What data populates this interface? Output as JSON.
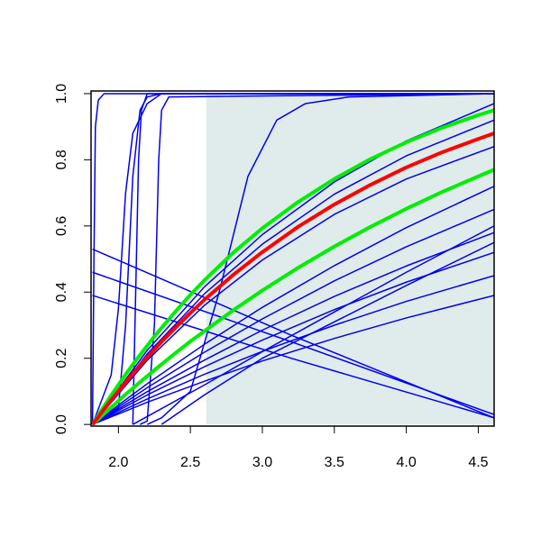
{
  "chart_data": {
    "type": "line",
    "xlim": [
      1.81,
      4.61
    ],
    "ylim": [
      -0.005,
      1.008
    ],
    "xticks": [
      {
        "value": 2,
        "label": "2.0"
      },
      {
        "value": 2.5,
        "label": "2.5"
      },
      {
        "value": 3,
        "label": "3.0"
      },
      {
        "value": 3.5,
        "label": "3.5"
      },
      {
        "value": 4,
        "label": "4.0"
      },
      {
        "value": 4.5,
        "label": "4.5"
      }
    ],
    "yticks": [
      {
        "value": 0,
        "label": "0.0"
      },
      {
        "value": 0.2,
        "label": "0.2"
      },
      {
        "value": 0.4,
        "label": "0.4"
      },
      {
        "value": 0.6,
        "label": "0.6"
      },
      {
        "value": 0.8,
        "label": "0.8"
      },
      {
        "value": 1,
        "label": "1.0"
      }
    ],
    "shaded_region": {
      "x": [
        2.61,
        4.61
      ],
      "y": [
        0,
        1
      ],
      "color": "#e0ebeb"
    },
    "series": [
      {
        "color": "#0000ee",
        "width": 1.5,
        "x": [
          1.82,
          1.83,
          1.84,
          1.86,
          1.9,
          2.0,
          4.61
        ],
        "values": [
          0,
          0.5,
          0.9,
          0.98,
          1.0,
          1.0,
          1.0
        ]
      },
      {
        "color": "#0000ee",
        "width": 1.5,
        "x": [
          1.82,
          1.95,
          2.0,
          2.05,
          2.1,
          2.2,
          2.3,
          4.61
        ],
        "values": [
          0,
          0.15,
          0.35,
          0.7,
          0.88,
          0.97,
          1.0,
          1.0
        ]
      },
      {
        "color": "#0000ee",
        "width": 1.5,
        "x": [
          1.82,
          2.0,
          2.05,
          2.1,
          2.15,
          2.2,
          2.3,
          4.61
        ],
        "values": [
          0,
          0.05,
          0.3,
          0.75,
          0.95,
          0.99,
          1,
          1
        ]
      },
      {
        "color": "#0000ee",
        "width": 1.5,
        "x": [
          2.1,
          2.12,
          2.14,
          2.16,
          2.2,
          4.61
        ],
        "values": [
          0,
          0.4,
          0.8,
          0.95,
          1,
          1
        ]
      },
      {
        "color": "#0000ee",
        "width": 1.5,
        "x": [
          2.15,
          2.2,
          2.25,
          2.28,
          2.3,
          2.35,
          4.61
        ],
        "values": [
          0,
          0.01,
          0.3,
          0.8,
          0.95,
          0.99,
          1
        ]
      },
      {
        "color": "#0000ee",
        "width": 1.5,
        "x": [
          2.2,
          2.3,
          2.5,
          2.7,
          2.9,
          3.1,
          3.3,
          3.6,
          4.61
        ],
        "values": [
          0,
          0.02,
          0.1,
          0.4,
          0.75,
          0.92,
          0.97,
          0.99,
          1.0
        ]
      },
      {
        "color": "#0000ee",
        "width": 1.5,
        "x": [
          1.82,
          3.2,
          4.61
        ],
        "values": [
          0.53,
          0.27,
          0.02
        ]
      },
      {
        "color": "#0000ee",
        "width": 1.5,
        "x": [
          1.82,
          3.2,
          4.61
        ],
        "values": [
          0.46,
          0.25,
          0.03
        ]
      },
      {
        "color": "#0000ee",
        "width": 1.5,
        "x": [
          1.82,
          3.2,
          4.61
        ],
        "values": [
          0.39,
          0.2,
          0.02
        ]
      },
      {
        "color": "#0000ee",
        "width": 1.5,
        "x": [
          1.82,
          2.2,
          2.6,
          3.0,
          3.5,
          4.0,
          4.61
        ],
        "values": [
          0,
          0.224,
          0.417,
          0.574,
          0.733,
          0.857,
          0.97
        ]
      },
      {
        "color": "#0000ee",
        "width": 1.5,
        "x": [
          1.82,
          2.2,
          2.6,
          3.0,
          3.5,
          4.0,
          4.61
        ],
        "values": [
          0,
          0.213,
          0.396,
          0.545,
          0.696,
          0.812,
          0.92
        ]
      },
      {
        "color": "#0000ee",
        "width": 1.5,
        "x": [
          1.82,
          2.2,
          2.6,
          3.0,
          3.5,
          4.0,
          4.61
        ],
        "values": [
          0,
          0.194,
          0.361,
          0.497,
          0.635,
          0.742,
          0.84
        ]
      },
      {
        "color": "#0000ee",
        "width": 1.5,
        "x": [
          1.82,
          2.2,
          2.6,
          3.0,
          3.5,
          4.0,
          4.61
        ],
        "values": [
          0,
          0.123,
          0.243,
          0.354,
          0.48,
          0.595,
          0.72
        ]
      },
      {
        "color": "#0000ee",
        "width": 1.5,
        "x": [
          1.82,
          2.2,
          2.6,
          3.0,
          3.5,
          4.0,
          4.61
        ],
        "values": [
          0,
          0.111,
          0.219,
          0.319,
          0.434,
          0.537,
          0.65
        ]
      },
      {
        "color": "#0000ee",
        "width": 1.5,
        "x": [
          1.82,
          2.2,
          2.6,
          3.0,
          3.5,
          4.0,
          4.61
        ],
        "values": [
          0,
          0.099,
          0.195,
          0.285,
          0.387,
          0.479,
          0.58
        ]
      },
      {
        "color": "#0000ee",
        "width": 1.5,
        "x": [
          1.82,
          2.2,
          2.6,
          3.0,
          3.5,
          4.0,
          4.61
        ],
        "values": [
          0,
          0.089,
          0.175,
          0.255,
          0.347,
          0.43,
          0.52
        ]
      },
      {
        "color": "#0000ee",
        "width": 1.5,
        "x": [
          1.82,
          2.2,
          2.6,
          3.0,
          3.5,
          4.0,
          4.61
        ],
        "values": [
          0,
          0.077,
          0.152,
          0.221,
          0.3,
          0.372,
          0.45
        ]
      },
      {
        "color": "#0000ee",
        "width": 1.5,
        "x": [
          1.82,
          2.2,
          2.6,
          3.0,
          3.5,
          4.0,
          4.61
        ],
        "values": [
          0,
          0.067,
          0.131,
          0.192,
          0.26,
          0.322,
          0.39
        ]
      },
      {
        "color": "#0000ee",
        "width": 1.5,
        "x": [
          2.1,
          2.6,
          3.0,
          3.5,
          4.0,
          4.61
        ],
        "values": [
          0,
          0.12,
          0.22,
          0.34,
          0.46,
          0.6
        ]
      },
      {
        "color": "#0000ee",
        "width": 1.5,
        "x": [
          2.3,
          2.6,
          3.0,
          3.5,
          4.0,
          4.61
        ],
        "values": [
          0,
          0.09,
          0.2,
          0.31,
          0.42,
          0.55
        ]
      },
      {
        "color": "#00ee00",
        "width": 4,
        "x": [
          1.82,
          1.85,
          1.9,
          1.95,
          2.0,
          2.05,
          2.1,
          2.15,
          2.2,
          2.25,
          2.3,
          2.4,
          2.5,
          2.6,
          2.8,
          3.0,
          3.25,
          3.5,
          3.75,
          4.0,
          4.25,
          4.5,
          4.61
        ],
        "values": [
          0,
          0.021,
          0.055,
          0.088,
          0.12,
          0.151,
          0.181,
          0.21,
          0.238,
          0.266,
          0.292,
          0.343,
          0.392,
          0.437,
          0.52,
          0.593,
          0.673,
          0.742,
          0.802,
          0.853,
          0.897,
          0.935,
          0.95
        ]
      },
      {
        "color": "#00ee00",
        "width": 4,
        "x": [
          1.82,
          1.85,
          1.9,
          1.95,
          2.0,
          2.05,
          2.1,
          2.15,
          2.2,
          2.25,
          2.3,
          2.4,
          2.5,
          2.6,
          2.8,
          3.0,
          3.25,
          3.5,
          3.75,
          4.0,
          4.25,
          4.5,
          4.61
        ],
        "values": [
          0,
          0.012,
          0.032,
          0.052,
          0.071,
          0.091,
          0.109,
          0.128,
          0.146,
          0.164,
          0.182,
          0.217,
          0.251,
          0.283,
          0.346,
          0.405,
          0.474,
          0.538,
          0.597,
          0.652,
          0.703,
          0.75,
          0.77
        ]
      },
      {
        "color": "#ff0000",
        "width": 4,
        "x": [
          1.82,
          1.85,
          1.9,
          1.95,
          2.0,
          2.05,
          2.1,
          2.15,
          2.2,
          2.25,
          2.3,
          2.4,
          2.5,
          2.6,
          2.8,
          3.0,
          3.25,
          3.5,
          3.75,
          4.0,
          4.25,
          4.5,
          4.61
        ],
        "values": [
          0,
          0.017,
          0.046,
          0.074,
          0.101,
          0.127,
          0.153,
          0.178,
          0.203,
          0.226,
          0.25,
          0.294,
          0.337,
          0.378,
          0.453,
          0.521,
          0.598,
          0.665,
          0.724,
          0.777,
          0.823,
          0.863,
          0.88
        ]
      }
    ]
  }
}
